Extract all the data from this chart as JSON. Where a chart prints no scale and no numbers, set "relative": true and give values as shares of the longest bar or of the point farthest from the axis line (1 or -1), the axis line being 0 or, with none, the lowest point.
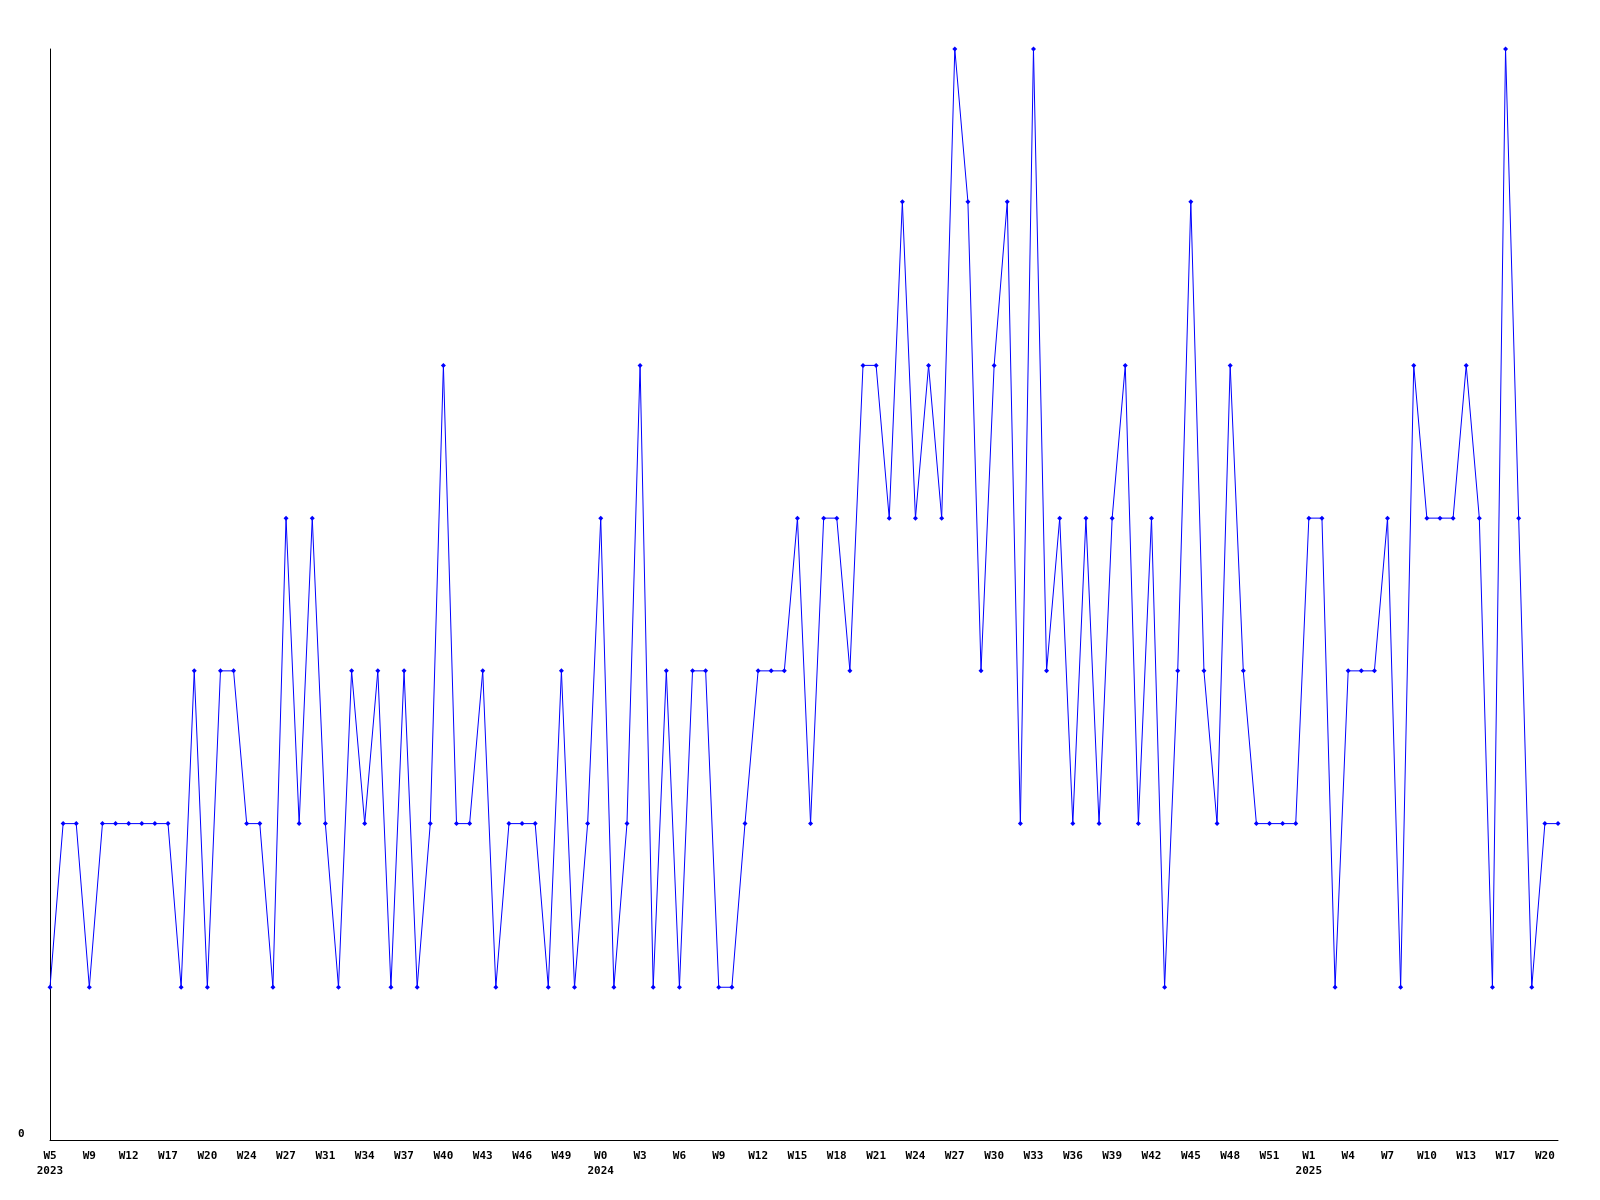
{
  "chart_data": {
    "type": "line",
    "relative": true,
    "marker": "diamond",
    "line_style": "solid",
    "annotations": [
      "0"
    ],
    "categories": [
      "W5\n2023",
      null,
      null,
      "W9",
      null,
      null,
      "W12",
      null,
      null,
      "W17",
      null,
      null,
      "W20",
      null,
      null,
      "W24",
      null,
      null,
      "W27",
      null,
      null,
      "W31",
      null,
      null,
      "W34",
      null,
      null,
      "W37",
      null,
      null,
      "W40",
      null,
      null,
      "W43",
      null,
      null,
      "W46",
      null,
      null,
      "W49",
      null,
      null,
      "W0\n2024",
      null,
      null,
      "W3",
      null,
      null,
      "W6",
      null,
      null,
      "W9",
      null,
      null,
      "W12",
      null,
      null,
      "W15",
      null,
      null,
      "W18",
      null,
      null,
      "W21",
      null,
      null,
      "W24",
      null,
      null,
      "W27",
      null,
      null,
      "W30",
      null,
      null,
      "W33",
      null,
      null,
      "W36",
      null,
      null,
      "W39",
      null,
      null,
      "W42",
      null,
      null,
      "W45",
      null,
      null,
      "W48",
      null,
      null,
      "W51",
      null,
      null,
      "W1\n2025",
      null,
      null,
      "W4",
      null,
      null,
      "W7",
      null,
      null,
      "W10",
      null,
      null,
      "W13",
      null,
      null,
      "W17",
      null,
      null,
      "W20",
      null
    ],
    "series": [
      {
        "color": "#0000ff",
        "values": [
          0.14,
          0.29,
          0.29,
          0.14,
          0.29,
          0.29,
          0.29,
          0.29,
          0.29,
          0.29,
          0.14,
          0.43,
          0.14,
          0.43,
          0.43,
          0.29,
          0.29,
          0.14,
          0.57,
          0.29,
          0.57,
          0.29,
          0.14,
          0.43,
          0.29,
          0.43,
          0.14,
          0.43,
          0.14,
          0.29,
          0.71,
          0.29,
          0.29,
          0.43,
          0.14,
          0.29,
          0.29,
          0.29,
          0.14,
          0.43,
          0.14,
          0.29,
          0.57,
          0.14,
          0.29,
          0.71,
          0.14,
          0.43,
          0.14,
          0.43,
          0.43,
          0.14,
          0.14,
          0.29,
          0.43,
          0.43,
          0.43,
          0.57,
          0.29,
          0.57,
          0.57,
          0.43,
          0.71,
          0.71,
          0.57,
          0.86,
          0.57,
          0.71,
          0.57,
          1,
          0.86,
          0.43,
          0.71,
          0.86,
          0.29,
          1,
          0.43,
          0.57,
          0.29,
          0.57,
          0.29,
          0.57,
          0.71,
          0.29,
          0.57,
          0.14,
          0.43,
          0.86,
          0.43,
          0.29,
          0.71,
          0.43,
          0.29,
          0.29,
          0.29,
          0.29,
          0.57,
          0.57,
          0.14,
          0.43,
          0.43,
          0.43,
          0.57,
          0.14,
          0.71,
          0.57,
          0.57,
          0.57,
          0.71,
          0.57,
          0.14,
          1,
          0.57,
          0.14,
          0.29,
          0.29
        ]
      }
    ]
  }
}
